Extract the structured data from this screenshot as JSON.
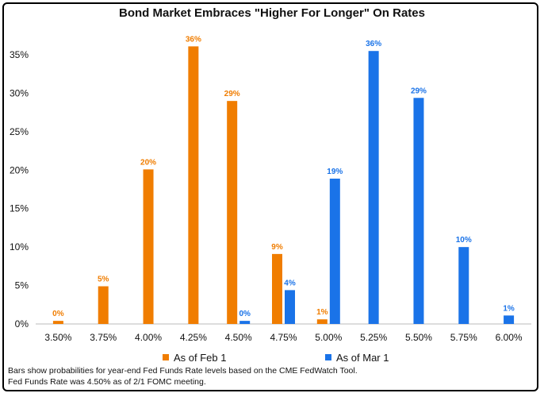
{
  "chart_data": {
    "type": "bar",
    "title": "Bond Market Embraces \"Higher For Longer\" On Rates",
    "categories": [
      "3.50%",
      "3.75%",
      "4.00%",
      "4.25%",
      "4.50%",
      "4.75%",
      "5.00%",
      "5.25%",
      "5.50%",
      "5.75%",
      "6.00%"
    ],
    "series": [
      {
        "name": "As of Feb 1",
        "color": "#f07d00",
        "values": [
          0.4,
          4.9,
          20.1,
          36.1,
          29.0,
          9.1,
          0.6,
          null,
          null,
          null,
          null
        ],
        "labels": [
          "0%",
          "5%",
          "20%",
          "36%",
          "29%",
          "9%",
          "1%",
          "",
          "",
          "",
          ""
        ]
      },
      {
        "name": "As of Mar 1",
        "color": "#1a73e8",
        "values": [
          null,
          null,
          null,
          null,
          0.4,
          4.4,
          18.9,
          35.5,
          29.4,
          10.0,
          1.1
        ],
        "labels": [
          "",
          "",
          "",
          "",
          "0%",
          "4%",
          "19%",
          "36%",
          "29%",
          "10%",
          "1%"
        ]
      }
    ],
    "yticks": [
      "0%",
      "5%",
      "10%",
      "15%",
      "20%",
      "25%",
      "30%",
      "35%"
    ],
    "ylim": [
      0,
      38
    ],
    "legend_position": "bottom",
    "grid": false
  },
  "footnote": {
    "line1": "Bars show probabilities for year-end Fed Funds Rate levels based on the CME FedWatch Tool.",
    "line2": "Fed Funds Rate was 4.50% as of 2/1 FOMC meeting."
  }
}
